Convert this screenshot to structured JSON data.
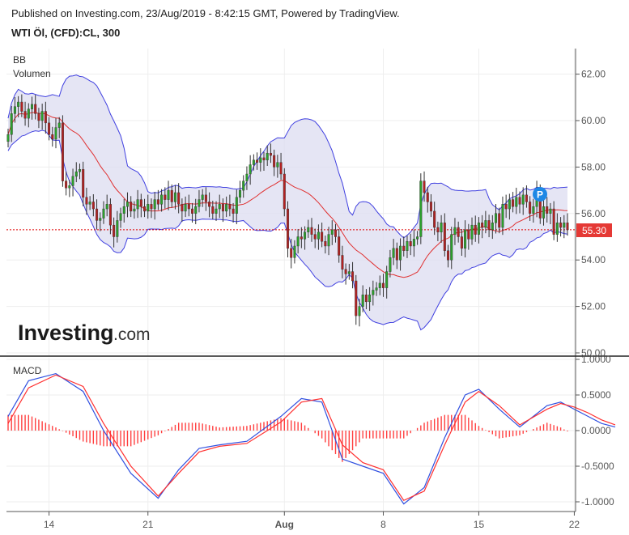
{
  "header": {
    "published": "Published on Investing.com, 23/Aug/2019 - 8:42:15 GMT, Powered by TradingView.",
    "symbol": "WTI Öl, (CFD):CL, 300"
  },
  "price_pane": {
    "indicator_labels": [
      "BB",
      "Volumen"
    ],
    "last_price_label": "55.30",
    "marker_label": "P"
  },
  "macd_pane": {
    "label": "MACD"
  },
  "logo": {
    "text_bold": "Investing",
    "text_light": ".com"
  },
  "colors": {
    "up": "#2ca02c",
    "down": "#b22222",
    "band": "#4040e0",
    "band_fill": "#dcdcf0",
    "basis": "#e03030",
    "price_line": "#e00000",
    "macd": "#3050e0",
    "signal": "#ff3030",
    "hist": "#ff4040",
    "last_price_bg": "#e53935",
    "marker_bg": "#1e88e5"
  },
  "chart_data": [
    {
      "type": "candlestick",
      "title": "WTI Öl, (CFD):CL, 300",
      "x_ticks": [
        "14",
        "21",
        "Aug",
        "8",
        "15",
        "22"
      ],
      "y_ticks": [
        "50.00",
        "52.00",
        "54.00",
        "56.00",
        "58.00",
        "60.00",
        "62.00"
      ],
      "ylim": [
        50,
        63
      ],
      "last_price": 55.3,
      "grid": true,
      "closes": [
        59.4,
        60.3,
        60.6,
        60.8,
        60.4,
        60.1,
        60.5,
        60.7,
        60.3,
        60.0,
        60.4,
        59.9,
        59.4,
        59.2,
        59.7,
        59.9,
        57.4,
        57.1,
        57.2,
        57.6,
        57.8,
        57.9,
        56.7,
        56.4,
        56.5,
        56.2,
        55.7,
        55.8,
        56.2,
        56.4,
        55.5,
        55.0,
        55.7,
        56.0,
        56.3,
        56.5,
        56.1,
        56.2,
        56.6,
        56.3,
        56.1,
        56.4,
        56.2,
        56.6,
        56.4,
        56.8,
        56.6,
        57.0,
        56.5,
        56.9,
        56.4,
        56.1,
        56.4,
        56.2,
        56.0,
        56.3,
        56.6,
        56.8,
        56.5,
        56.3,
        56.0,
        56.2,
        56.4,
        56.1,
        56.4,
        56.2,
        56.0,
        56.7,
        57.0,
        57.4,
        57.7,
        58.1,
        58.3,
        58.2,
        58.4,
        58.3,
        58.6,
        58.5,
        58.0,
        58.2,
        57.7,
        56.2,
        54.5,
        54.1,
        54.6,
        55.0,
        54.9,
        55.2,
        55.4,
        55.1,
        54.9,
        55.2,
        54.8,
        54.6,
        55.1,
        55.3,
        55.0,
        54.2,
        53.6,
        53.4,
        53.5,
        53.1,
        51.6,
        52.0,
        52.5,
        52.2,
        52.5,
        52.7,
        52.8,
        53.0,
        52.8,
        53.5,
        54.1,
        54.5,
        54.0,
        54.6,
        54.4,
        54.8,
        54.6,
        54.9,
        55.0,
        57.4,
        56.9,
        56.5,
        56.1,
        55.4,
        55.2,
        55.6,
        54.4,
        54.0,
        55.1,
        55.4,
        55.0,
        54.5,
        55.3,
        54.9,
        55.5,
        55.1,
        55.6,
        55.4,
        55.7,
        55.3,
        55.6,
        56.0,
        55.4,
        56.4,
        56.2,
        56.6,
        56.3,
        56.7,
        56.4,
        56.8,
        56.5,
        56.0,
        56.3,
        57.0,
        55.8,
        56.3,
        56.0,
        56.2,
        55.1,
        55.6,
        55.4,
        55.6,
        55.3
      ]
    },
    {
      "type": "line",
      "title": "MACD",
      "x_ticks": [
        "14",
        "21",
        "Aug",
        "8",
        "15",
        "22"
      ],
      "y_ticks": [
        "-1.0000",
        "-0.5000",
        "0.0000",
        "0.5000",
        "1.0000"
      ],
      "ylim": [
        -1.1,
        1.0
      ],
      "series": [
        {
          "name": "MACD",
          "x": [
            0,
            6,
            14,
            22,
            28,
            36,
            44,
            50,
            56,
            62,
            70,
            80,
            86,
            92,
            98,
            104,
            110,
            116,
            122,
            128,
            134,
            138,
            144,
            150,
            158,
            162,
            166,
            170,
            174,
            178
          ],
          "values": [
            0.2,
            0.7,
            0.8,
            0.55,
            0.0,
            -0.6,
            -0.95,
            -0.55,
            -0.25,
            -0.2,
            -0.15,
            0.2,
            0.45,
            0.4,
            -0.4,
            -0.5,
            -0.6,
            -1.03,
            -0.8,
            -0.1,
            0.5,
            0.58,
            0.3,
            0.05,
            0.35,
            0.4,
            0.3,
            0.2,
            0.1,
            0.05
          ]
        },
        {
          "name": "Signal",
          "x": [
            0,
            6,
            14,
            22,
            28,
            36,
            44,
            50,
            56,
            62,
            70,
            80,
            86,
            92,
            98,
            104,
            110,
            116,
            122,
            128,
            134,
            138,
            144,
            150,
            158,
            162,
            166,
            170,
            174,
            178
          ],
          "values": [
            0.1,
            0.6,
            0.78,
            0.62,
            0.1,
            -0.5,
            -0.92,
            -0.6,
            -0.3,
            -0.22,
            -0.18,
            0.12,
            0.4,
            0.45,
            -0.2,
            -0.45,
            -0.55,
            -0.98,
            -0.85,
            -0.2,
            0.4,
            0.55,
            0.35,
            0.08,
            0.3,
            0.38,
            0.33,
            0.25,
            0.15,
            0.08
          ]
        }
      ]
    }
  ]
}
